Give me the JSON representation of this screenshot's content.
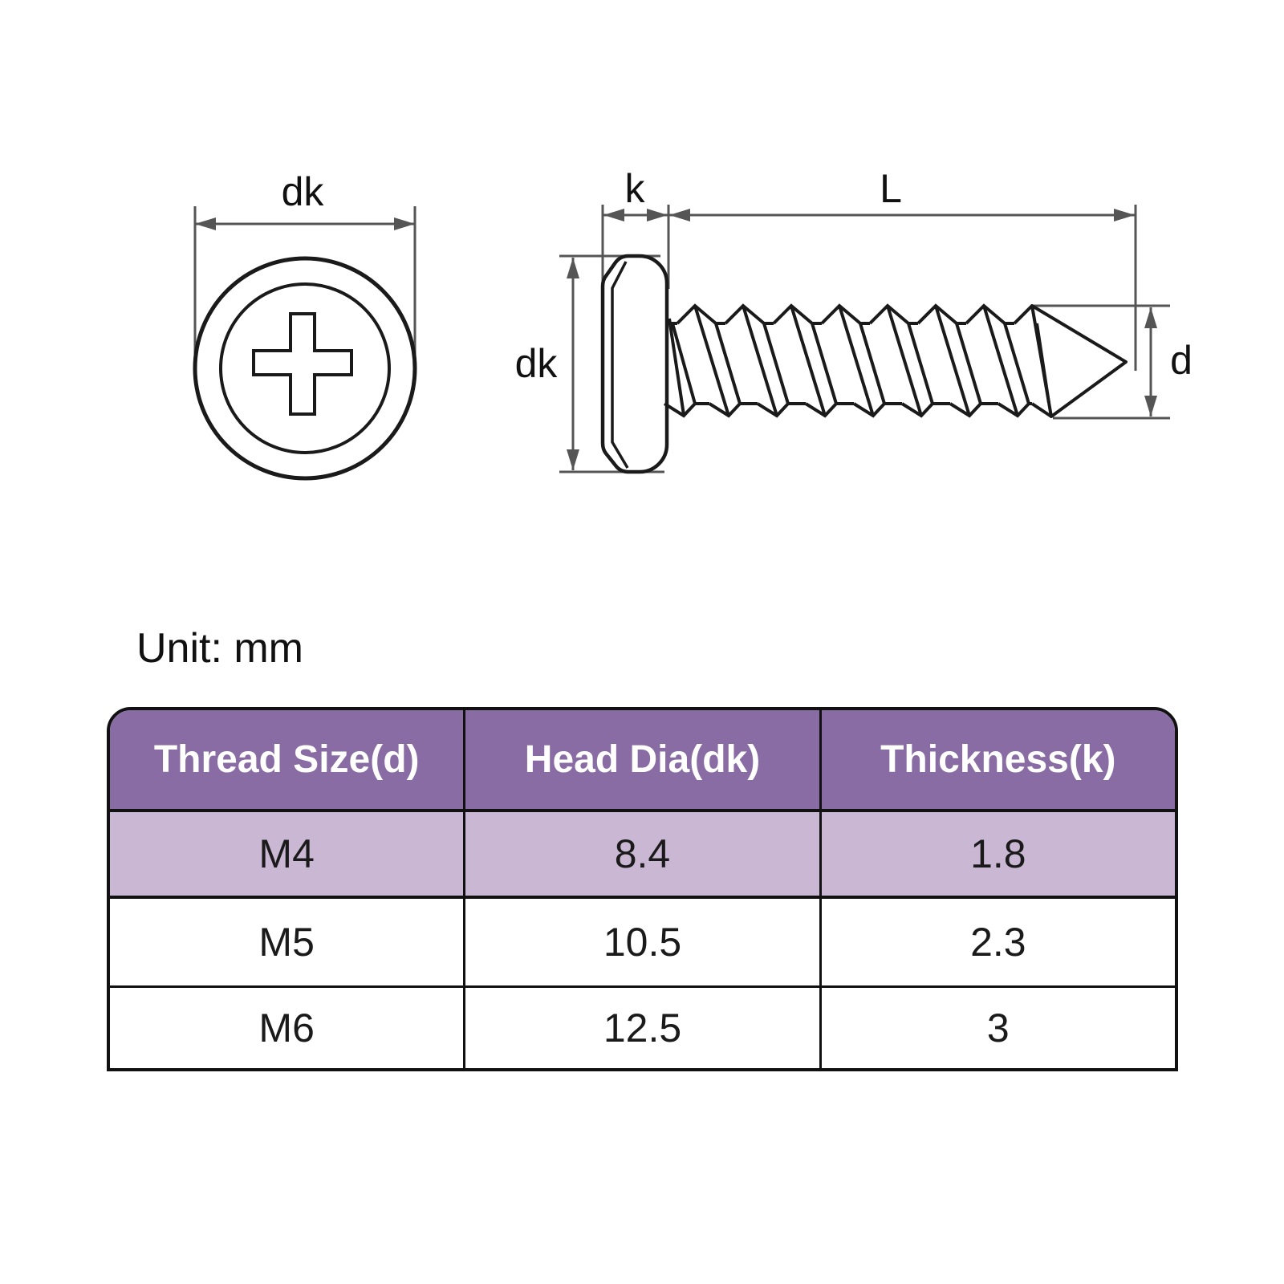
{
  "colors": {
    "outline": "#1a1a1a",
    "dimension": "#555555",
    "label_text": "#111111",
    "background": "#ffffff"
  },
  "diagram": {
    "top_view": {
      "head_dia_label": "dk"
    },
    "side_view": {
      "head_thickness_label": "k",
      "length_label": "L",
      "head_dia_label": "dk",
      "thread_dia_label": "d"
    }
  },
  "unit_note": "Unit: mm",
  "table": {
    "headers": [
      "Thread Size(d)",
      "Head Dia(dk)",
      "Thickness(k)"
    ],
    "rows": [
      {
        "thread_size": "M4",
        "head_dia": "8.4",
        "thickness": "1.8"
      },
      {
        "thread_size": "M5",
        "head_dia": "10.5",
        "thickness": "2.3"
      },
      {
        "thread_size": "M6",
        "head_dia": "12.5",
        "thickness": "3"
      }
    ],
    "colors": {
      "header_bg": "#8a6ca5",
      "header_text": "#ffffff",
      "highlight_row_bg": "#cab7d3",
      "row_bg": "#ffffff",
      "border": "#111111"
    }
  }
}
